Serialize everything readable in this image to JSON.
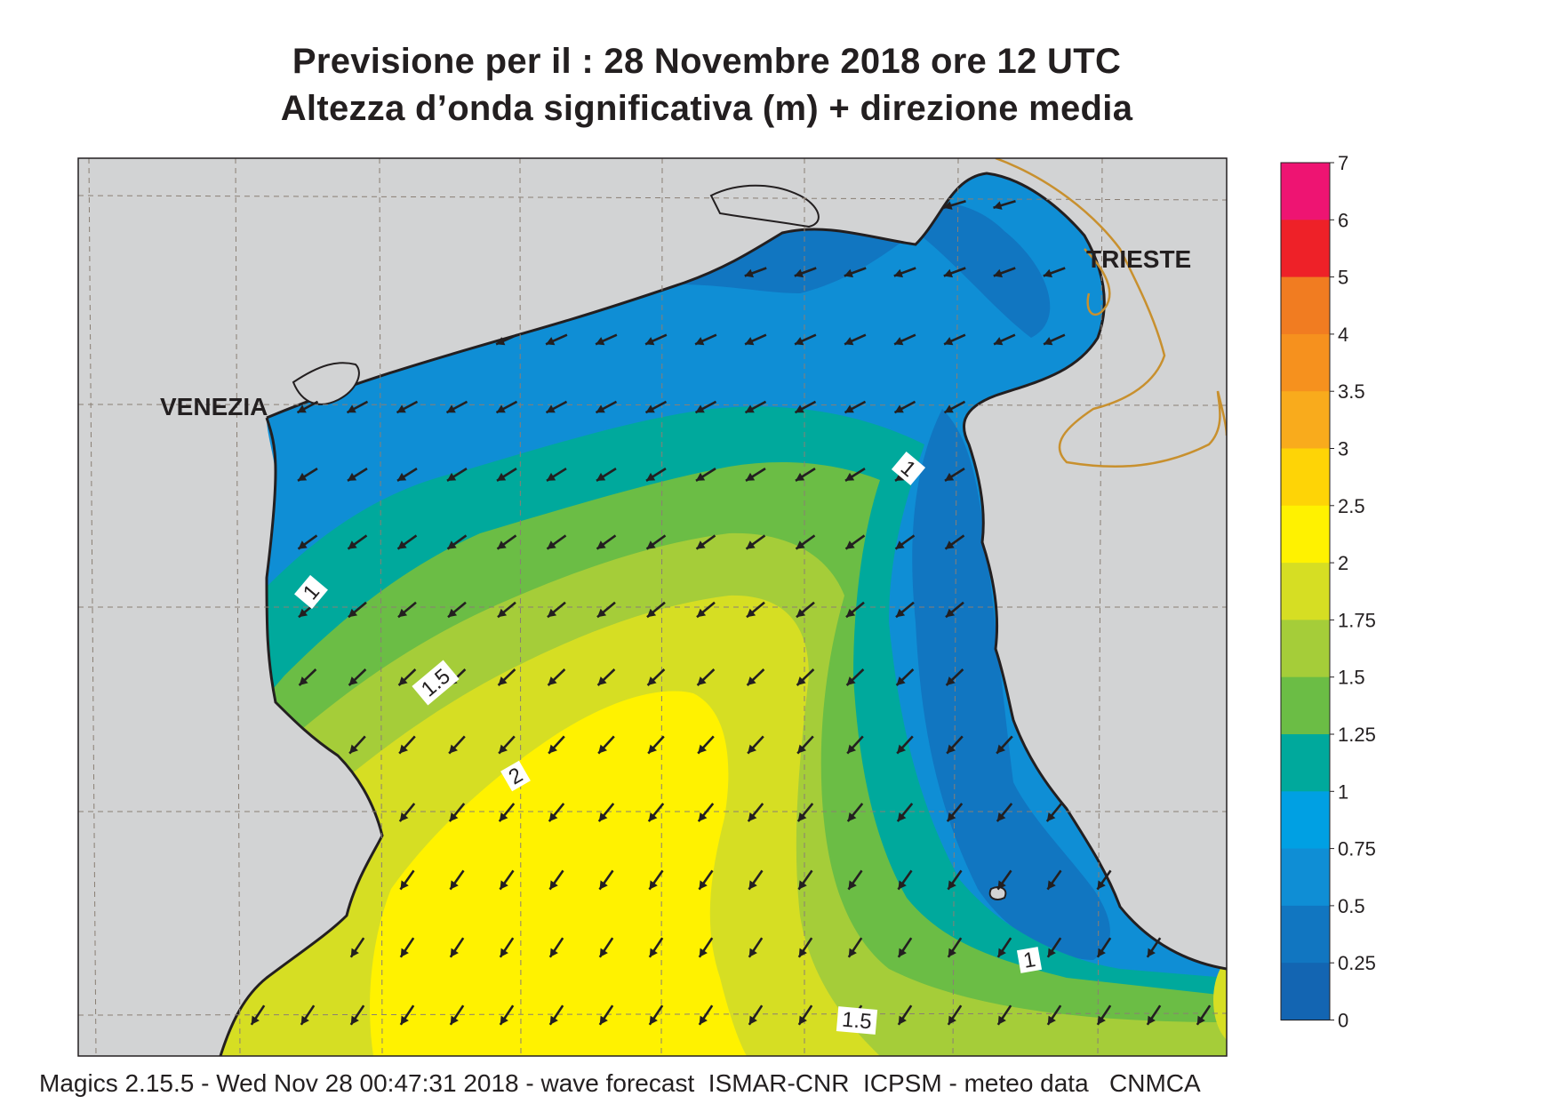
{
  "title": {
    "line1": "Previsione per il  :  28 Novembre  2018   ore 12 UTC",
    "line2": "Altezza d’onda significativa (m) + direzione media"
  },
  "map": {
    "labels": {
      "venezia": "VENEZIA",
      "trieste": "TRIESTE"
    },
    "contour_labels": [
      "1",
      "1",
      "1",
      "1.5",
      "1.5",
      "2"
    ],
    "colors": {
      "land": "#d2d3d4",
      "border": "#c8902e",
      "coast": "#231f20",
      "graticule": "#8a7f74"
    },
    "wave_direction": "towards south-west (arrows)"
  },
  "colorbar": {
    "ticks": [
      "7",
      "6",
      "5",
      "4",
      "3.5",
      "3",
      "2.5",
      "2",
      "1.75",
      "1.5",
      "1.25",
      "1",
      "0.75",
      "0.5",
      "0.25",
      "0"
    ],
    "colors": [
      "#ee1472",
      "#ee2128",
      "#f17c21",
      "#f6911e",
      "#f9ab1c",
      "#fed406",
      "#fff200",
      "#d6de23",
      "#a5cd39",
      "#6bbd45",
      "#00a99c",
      "#00a0e3",
      "#0f8ed5",
      "#1176c1",
      "#1365b2"
    ]
  },
  "footer": "Magics 2.15.5 - Wed Nov 28 00:47:31 2018 - wave forecast  ISMAR-CNR  ICPSM - meteo data   CNMCA"
}
